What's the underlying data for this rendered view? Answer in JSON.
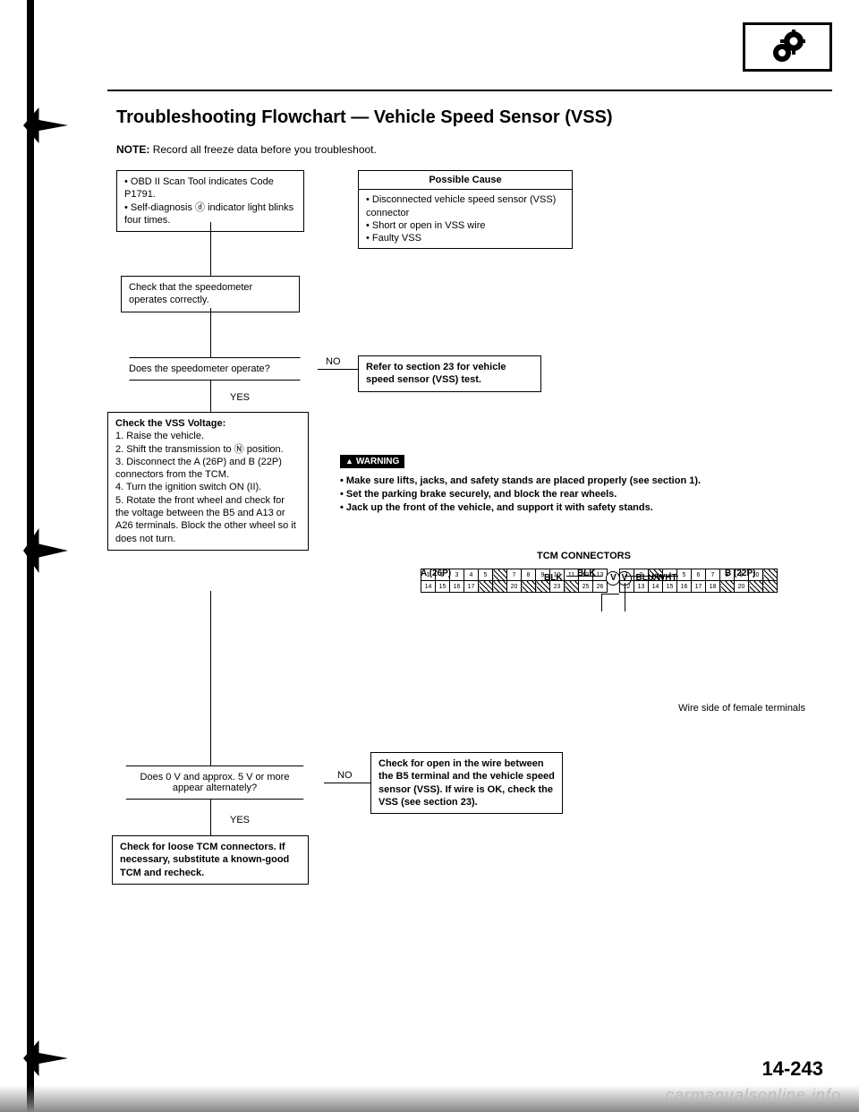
{
  "title": "Troubleshooting Flowchart — Vehicle Speed Sensor (VSS)",
  "note_label": "NOTE:",
  "note_text": "Record all freeze data before you troubleshoot.",
  "box_obd": {
    "line1": "• OBD II Scan Tool indicates Code P1791.",
    "line2": "• Self-diagnosis ⓓ indicator light blinks four times."
  },
  "box_cause": {
    "title": "Possible Cause",
    "l1": "• Disconnected vehicle speed sensor (VSS) connector",
    "l2": "• Short or open in VSS wire",
    "l3": "• Faulty VSS"
  },
  "box_check_speedo": "Check that the speedometer operates correctly.",
  "dec_speedo": "Does the speedometer operate?",
  "box_refer23": "Refer to section 23 for vehicle speed sensor (VSS) test.",
  "yes": "YES",
  "no": "NO",
  "box_vss_voltage": {
    "title": "Check the VSS Voltage:",
    "i1": "1. Raise the vehicle.",
    "i2": "2. Shift the transmission to Ⓝ position.",
    "i3": "3. Disconnect the A (26P) and B (22P) connectors from the TCM.",
    "i4": "4. Turn the ignition switch ON (II).",
    "i5": "5. Rotate the front wheel and check for the voltage between the B5 and A13 or A26 terminals. Block the other wheel so it does not turn."
  },
  "warning_badge": "WARNING",
  "warn": {
    "l1": "• Make sure lifts, jacks, and safety stands are placed properly (see section 1).",
    "l2": "• Set the parking brake securely, and block the rear wheels.",
    "l3": "• Jack up the front of the vehicle, and support it with safety stands."
  },
  "tcm_conn_title": "TCM CONNECTORS",
  "conn": {
    "a_label": "A (26P)",
    "b_label": "B (22P)",
    "blk": "BLK",
    "bluwht": "BLU/WHT",
    "v": "V"
  },
  "wire_side": "Wire side of female terminals",
  "dec_5v": "Does 0 V and approx. 5 V or more appear alternately?",
  "box_check_open": "Check for open in the wire between the B5 terminal and the vehicle speed sensor (VSS). If wire is OK, check the VSS (see section 23).",
  "box_loose": "Check for loose TCM connectors. If necessary, substitute a known-good TCM and recheck.",
  "pagenum": "14-243",
  "watermark": "carmanualsonline.info",
  "connA_row1": [
    "1",
    "2",
    "3",
    "4",
    "5",
    "",
    "7",
    "8",
    "9",
    "10",
    "11",
    "12",
    "13"
  ],
  "connA_row2": [
    "14",
    "15",
    "16",
    "17",
    "",
    "",
    "20",
    "",
    "",
    "23",
    "",
    "25",
    "26"
  ],
  "connB_row1": [
    "1",
    "2",
    "",
    "4",
    "5",
    "6",
    "7",
    "8",
    "9",
    "10",
    ""
  ],
  "connB_row2": [
    "12",
    "13",
    "14",
    "15",
    "16",
    "17",
    "18",
    "",
    "20",
    "",
    ""
  ]
}
